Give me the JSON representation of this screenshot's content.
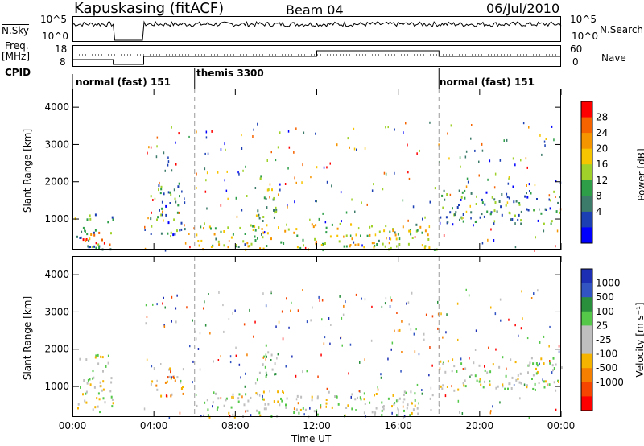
{
  "header": {
    "radar": "Kapuskasing (fitACF)",
    "beam": "Beam 04",
    "date": "06/Jul/2010"
  },
  "left_labels": {
    "nsky": "N.Sky",
    "freq": "Freq.",
    "freq_unit": "[MHz]",
    "cpid": "CPID"
  },
  "right_labels": {
    "nsearch": "N.Search",
    "nave": "Nave"
  },
  "noise_axis": {
    "left_ticks": [
      "10^5",
      "10^0"
    ],
    "right_ticks": [
      "10^5",
      "10^0"
    ]
  },
  "freq_axis": {
    "left_ticks": [
      "18",
      "8"
    ],
    "right_ticks": [
      "60",
      "0"
    ]
  },
  "cpid_segments": [
    {
      "label": "normal (fast) 151",
      "start": 0,
      "end": 6
    },
    {
      "label": "themis 3300",
      "start": 6,
      "end": 18
    },
    {
      "label": "normal (fast) 151",
      "start": 18,
      "end": 24
    }
  ],
  "colors": {
    "power_scale": [
      "#0000ff",
      "#1c3fb4",
      "#3c7a6a",
      "#2e9e48",
      "#9fd12a",
      "#f7c400",
      "#f59600",
      "#f56300",
      "#ff0000"
    ],
    "velocity_scale": [
      "#1c2fb4",
      "#3254c2",
      "#2a8f3d",
      "#55c84a",
      "#bfbfbf",
      "#bfbfbf",
      "#f5b400",
      "#f57f00",
      "#f54500",
      "#ff0000"
    ]
  },
  "chart_data": [
    {
      "type": "heatmap",
      "title": "",
      "xlabel": "",
      "ylabel": "Slant Range [km]",
      "x_ticks": [
        "00:00",
        "04:00",
        "08:00",
        "12:00",
        "16:00",
        "20:00",
        "00:00"
      ],
      "xlim": [
        0,
        24
      ],
      "ylim": [
        180,
        4500
      ],
      "y_ticks": [
        1000,
        2000,
        3000,
        4000
      ],
      "colorbar": {
        "label": "Power [dB]",
        "ticks": [
          4,
          8,
          12,
          16,
          20,
          24,
          28
        ],
        "range": [
          0,
          30
        ]
      },
      "regions": [
        {
          "t0": 0.1,
          "t1": 2.0,
          "r0": 200,
          "r1": 1200,
          "level": 0.35
        },
        {
          "t0": 0.5,
          "t1": 2.0,
          "r0": 300,
          "r1": 700,
          "level": 0.85
        },
        {
          "t0": 3.8,
          "t1": 5.5,
          "r0": 600,
          "r1": 2000,
          "level": 0.3
        },
        {
          "t0": 6.0,
          "t1": 18.0,
          "r0": 200,
          "r1": 900,
          "level": 0.55
        },
        {
          "t0": 9.0,
          "t1": 10.0,
          "r0": 900,
          "r1": 2200,
          "level": 0.45
        },
        {
          "t0": 18.0,
          "t1": 24.0,
          "r0": 900,
          "r1": 1800,
          "level": 0.3
        }
      ]
    },
    {
      "type": "heatmap",
      "title": "",
      "xlabel": "Time UT",
      "ylabel": "Slant Range [km]",
      "x_ticks": [
        "00:00",
        "04:00",
        "08:00",
        "12:00",
        "16:00",
        "20:00",
        "00:00"
      ],
      "xlim": [
        0,
        24
      ],
      "ylim": [
        180,
        4500
      ],
      "y_ticks": [
        1000,
        2000,
        3000,
        4000
      ],
      "colorbar": {
        "label": "Velocity [m s⁻¹]",
        "ticks": [
          "1000",
          "500",
          "100",
          "25",
          "-25",
          "-100",
          "-500",
          "-1000"
        ],
        "range": [
          -1000,
          1000
        ]
      },
      "regions": [
        {
          "t0": 0.1,
          "t1": 2.0,
          "r0": 300,
          "r1": 1900,
          "level": 0.0
        },
        {
          "t0": 3.8,
          "t1": 5.5,
          "r0": 700,
          "r1": 1600,
          "level": -0.3
        },
        {
          "t0": 6.0,
          "t1": 18.0,
          "r0": 200,
          "r1": 900,
          "level": 0.0
        },
        {
          "t0": 9.0,
          "t1": 10.0,
          "r0": 1200,
          "r1": 2200,
          "level": 0.25
        },
        {
          "t0": 18.0,
          "t1": 24.0,
          "r0": 900,
          "r1": 1800,
          "level": 0.0
        }
      ]
    }
  ]
}
